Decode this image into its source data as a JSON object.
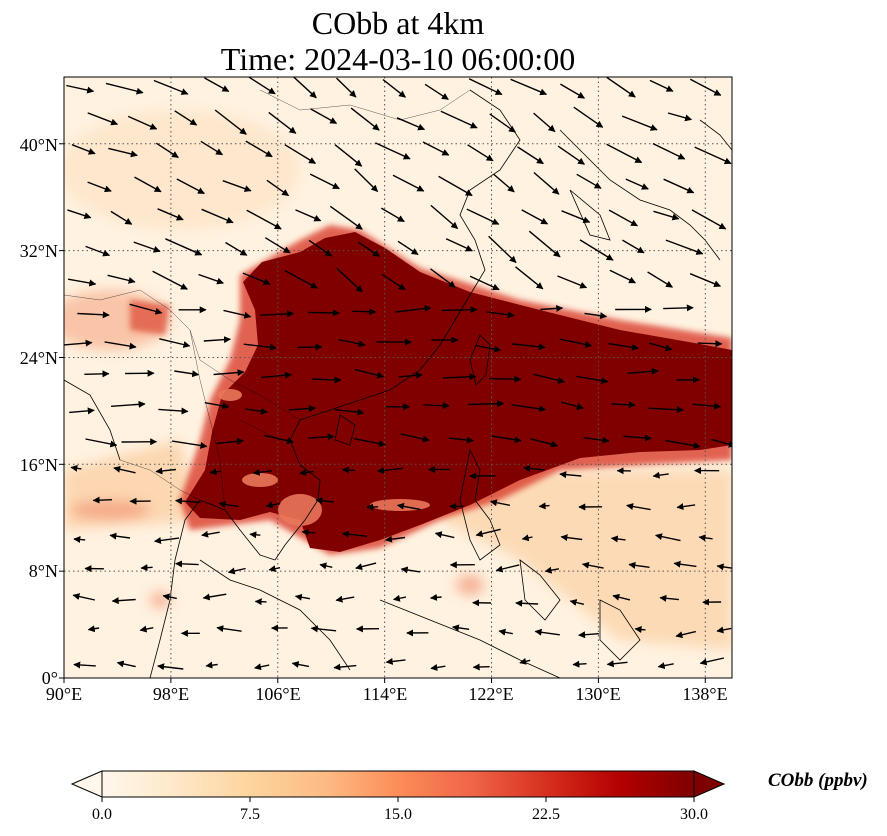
{
  "map": {
    "title_line1": "CObb at 4km",
    "title_line2": "Time: 2024-03-10 06:00:00",
    "lon_range": [
      90,
      140
    ],
    "lat_range": [
      0,
      45
    ],
    "lon_ticks": [
      "90°E",
      "98°E",
      "106°E",
      "114°E",
      "122°E",
      "130°E",
      "138°E"
    ],
    "lon_tick_values": [
      90,
      98,
      106,
      114,
      122,
      130,
      138
    ],
    "lat_ticks": [
      "0°",
      "8°N",
      "16°N",
      "24°N",
      "32°N",
      "40°N"
    ],
    "lat_tick_values": [
      0,
      8,
      16,
      24,
      32,
      40
    ],
    "gridlines": "dotted",
    "overlay": "wind vectors",
    "colormap": "OrRd",
    "plume_color": "#800000"
  },
  "colorbar": {
    "label": "CObb (ppbv)",
    "ticks": [
      "0.0",
      "7.5",
      "15.0",
      "22.5",
      "30.0"
    ],
    "tick_values": [
      0,
      7.5,
      15,
      22.5,
      30
    ],
    "range": [
      0,
      30
    ],
    "extend": "both",
    "colors": [
      "#fff7ec",
      "#fee8c8",
      "#fdd49e",
      "#fdbb84",
      "#fc8d59",
      "#ef6548",
      "#d7301f",
      "#b30000",
      "#7f0000"
    ]
  }
}
